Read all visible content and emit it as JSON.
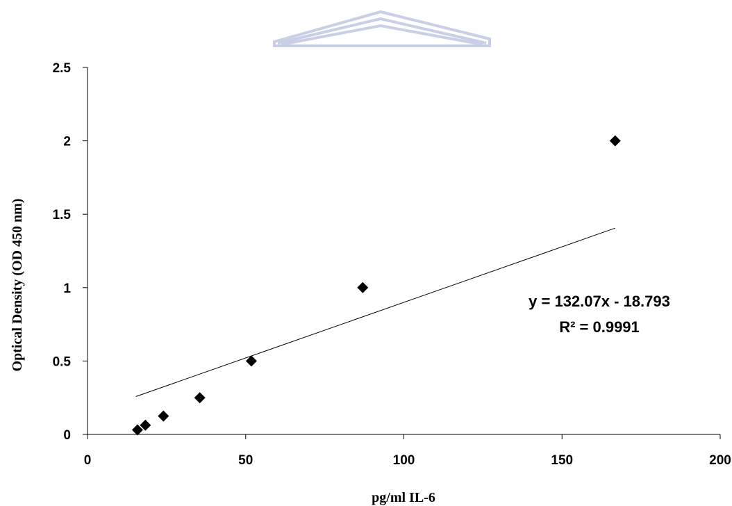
{
  "chart_data": {
    "type": "scatter",
    "xlabel": "pg/ml IL-6",
    "ylabel": "Optical Density (OD 450 nm)",
    "xlim": [
      0,
      200
    ],
    "ylim": [
      0,
      2.5
    ],
    "x_ticks": [
      "0",
      "50",
      "100",
      "150",
      "200"
    ],
    "y_ticks": [
      "0",
      "0.5",
      "1",
      "1.5",
      "2",
      "2.5"
    ],
    "grid": false,
    "legend": "none",
    "series": [
      {
        "marker": "diamond",
        "color": "#000000",
        "points": [
          {
            "x": 15.8,
            "y": 0.031
          },
          {
            "x": 18.3,
            "y": 0.063
          },
          {
            "x": 24.0,
            "y": 0.125
          },
          {
            "x": 35.5,
            "y": 0.25
          },
          {
            "x": 51.8,
            "y": 0.5
          },
          {
            "x": 87.0,
            "y": 1.0
          },
          {
            "x": 166.8,
            "y": 2.0
          }
        ]
      }
    ],
    "trendline": {
      "type": "linear",
      "color": "#000000",
      "x_range": [
        15.3,
        166.8
      ],
      "equation": "y = 132.07x - 18.793",
      "r_squared": "R² = 0.9991"
    }
  },
  "watermark": {
    "color": "#c8cfe6",
    "icon": "roof-watermark-logo"
  }
}
